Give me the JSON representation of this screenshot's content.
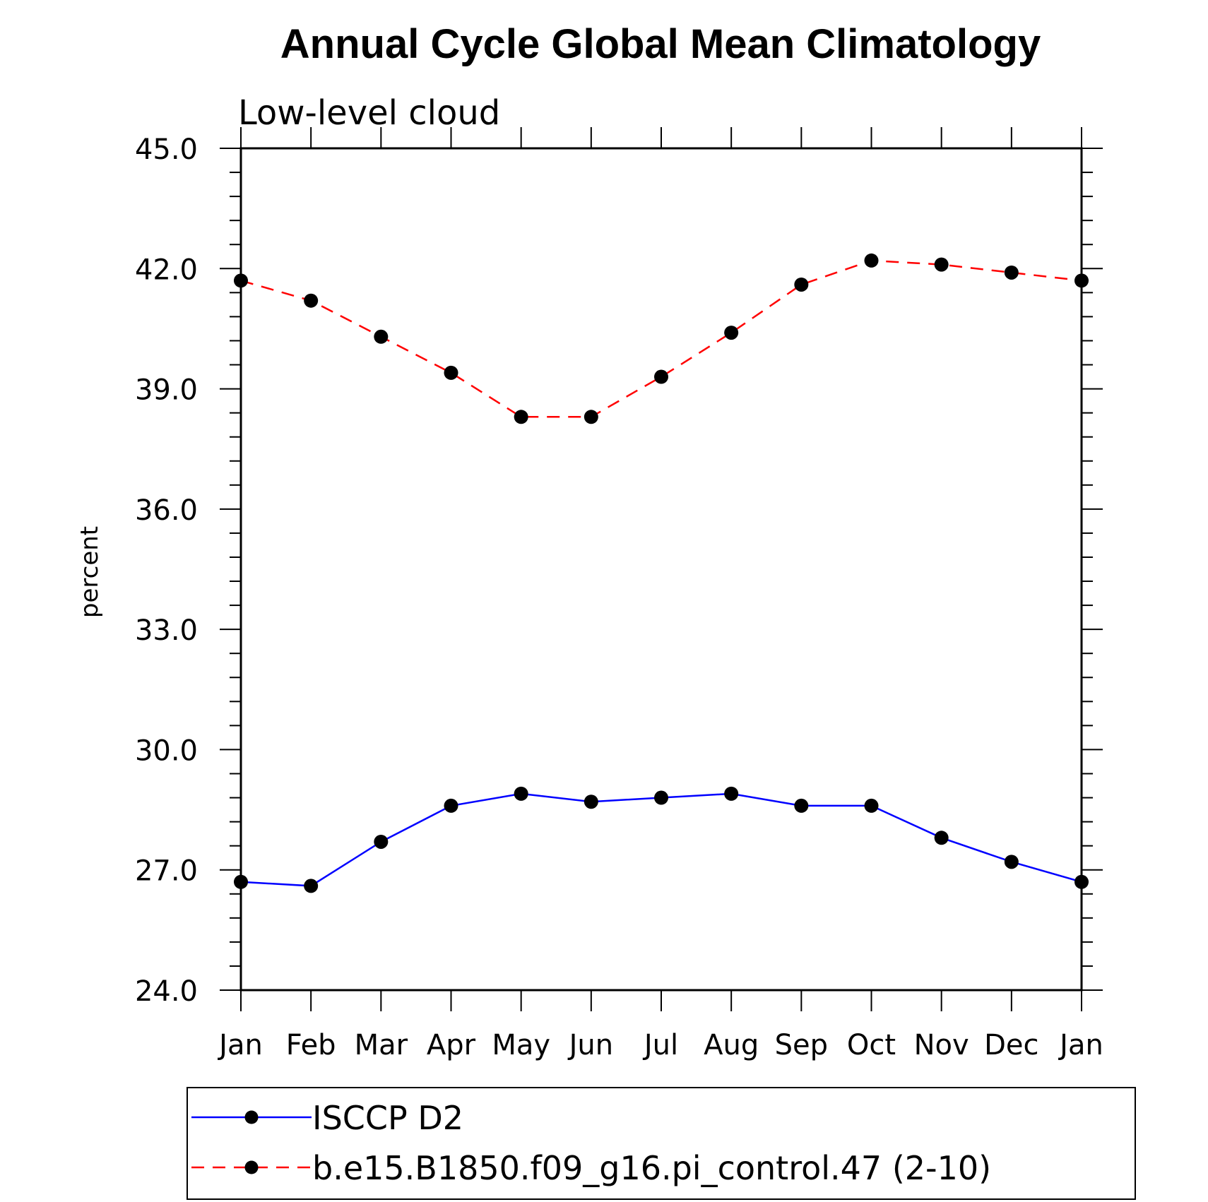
{
  "chart_data": {
    "type": "line",
    "title": "Annual Cycle Global Mean Climatology",
    "subtitle": "Low-level cloud",
    "xlabel": "",
    "ylabel": "percent",
    "categories": [
      "Jan",
      "Feb",
      "Mar",
      "Apr",
      "May",
      "Jun",
      "Jul",
      "Aug",
      "Sep",
      "Oct",
      "Nov",
      "Dec",
      "Jan"
    ],
    "ylim": [
      24.0,
      45.0
    ],
    "yticks": [
      "24.0",
      "27.0",
      "30.0",
      "33.0",
      "36.0",
      "39.0",
      "42.0",
      "45.0"
    ],
    "grid": false,
    "legend_position": "bottom",
    "series": [
      {
        "name": "ISCCP D2",
        "color": "#0000ff",
        "style": "solid",
        "marker": "filled-circle",
        "values": [
          26.7,
          26.6,
          27.7,
          28.6,
          28.9,
          28.7,
          28.8,
          28.9,
          28.6,
          28.6,
          27.8,
          27.2,
          26.7
        ]
      },
      {
        "name": "b.e15.B1850.f09_g16.pi_control.47 (2-10)",
        "color": "#ff0000",
        "style": "dashed",
        "marker": "filled-circle",
        "values": [
          41.7,
          41.2,
          40.3,
          39.4,
          38.3,
          38.3,
          39.3,
          40.4,
          41.6,
          42.2,
          42.1,
          41.9,
          41.7
        ]
      }
    ]
  }
}
